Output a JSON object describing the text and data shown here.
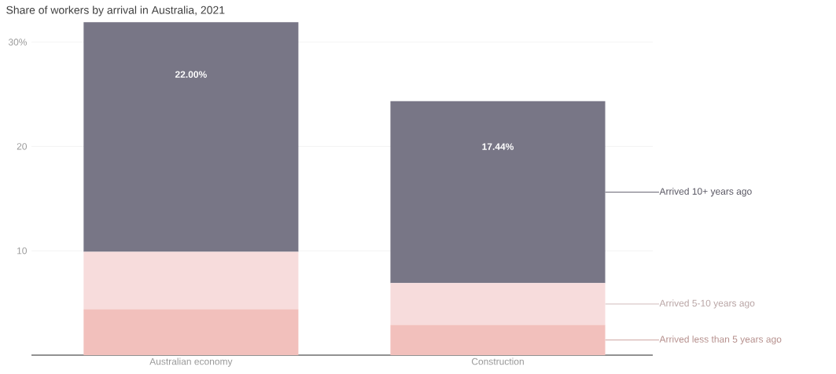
{
  "chart_data": {
    "type": "bar",
    "title": "Share of workers by arrival in Australia, 2021",
    "categories": [
      "Australian economy",
      "Construction"
    ],
    "stacked": true,
    "series": [
      {
        "name": "Arrived less than 5 years ago",
        "color": "#f2c0bc",
        "values": [
          4.4,
          2.9
        ]
      },
      {
        "name": "Arrived 5-10 years ago",
        "color": "#f7dcdc",
        "values": [
          5.5,
          4.0
        ]
      },
      {
        "name": "Arrived 10+ years ago",
        "color": "#787686",
        "values": [
          22.0,
          17.44
        ],
        "value_labels": [
          "22.00%",
          "17.44%"
        ]
      }
    ],
    "ylim": [
      0,
      32
    ],
    "yticks": [
      10,
      20,
      {
        "value": 30,
        "label": "30%"
      }
    ],
    "grid": "y",
    "legend": false
  }
}
